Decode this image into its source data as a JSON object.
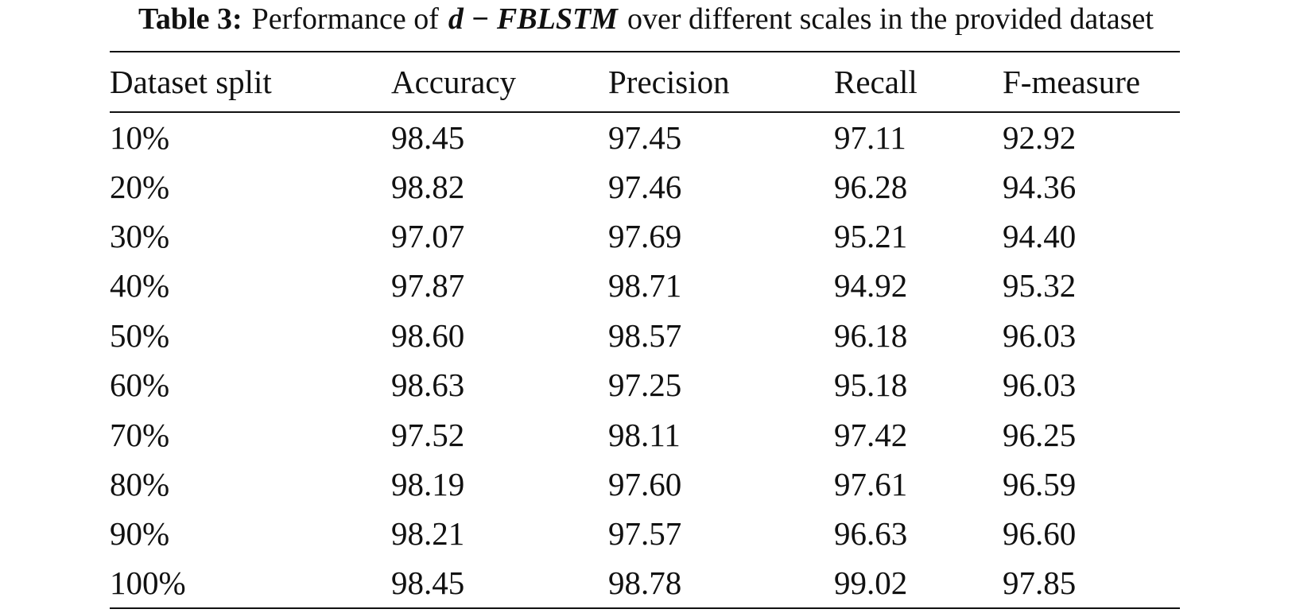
{
  "caption": {
    "label": "Table 3:",
    "text": "Performance of",
    "model": "d − FBLSTM",
    "suffix": "over different scales in the provided dataset"
  },
  "table": {
    "header": [
      "Dataset split",
      "Accuracy",
      "Precision",
      "Recall",
      "F-measure"
    ],
    "rows": [
      [
        "10%",
        "98.45",
        "97.45",
        "97.11",
        "92.92"
      ],
      [
        "20%",
        "98.82",
        "97.46",
        "96.28",
        "94.36"
      ],
      [
        "30%",
        "97.07",
        "97.69",
        "95.21",
        "94.40"
      ],
      [
        "40%",
        "97.87",
        "98.71",
        "94.92",
        "95.32"
      ],
      [
        "50%",
        "98.60",
        "98.57",
        "96.18",
        "96.03"
      ],
      [
        "60%",
        "98.63",
        "97.25",
        "95.18",
        "96.03"
      ],
      [
        "70%",
        "97.52",
        "98.11",
        "97.42",
        "96.25"
      ],
      [
        "80%",
        "98.19",
        "97.60",
        "97.61",
        "96.59"
      ],
      [
        "90%",
        "98.21",
        "97.57",
        "96.63",
        "96.60"
      ],
      [
        "100%",
        "98.45",
        "98.78",
        "99.02",
        "97.85"
      ]
    ]
  }
}
